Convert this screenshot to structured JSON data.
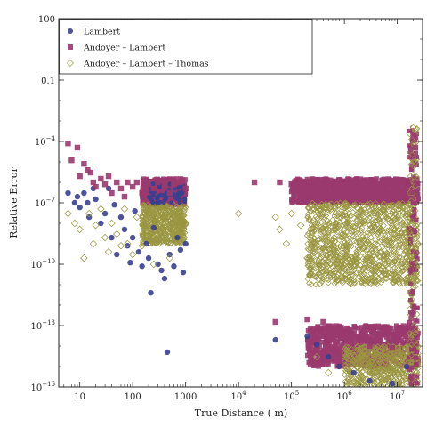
{
  "chart_data": {
    "type": "scatter",
    "xlabel": "True Distance ( m)",
    "ylabel": "Relative Error",
    "x_scale": "log",
    "y_scale": "log",
    "xlim": [
      4,
      30000000
    ],
    "ylim": [
      1e-16,
      100
    ],
    "x_ticks": [
      {
        "value": 10,
        "label": "10"
      },
      {
        "value": 100,
        "label": "100"
      },
      {
        "value": 1000,
        "label": "1000"
      },
      {
        "value": 10000,
        "label": "10",
        "exp": "4"
      },
      {
        "value": 100000,
        "label": "10",
        "exp": "5"
      },
      {
        "value": 1000000,
        "label": "10",
        "exp": "6"
      },
      {
        "value": 10000000,
        "label": "10",
        "exp": "7"
      }
    ],
    "y_ticks": [
      {
        "value": 1e-16,
        "label": "10",
        "exp": "−16"
      },
      {
        "value": 1e-13,
        "label": "10",
        "exp": "−13"
      },
      {
        "value": 1e-10,
        "label": "10",
        "exp": "−10"
      },
      {
        "value": 1e-07,
        "label": "10",
        "exp": "−7"
      },
      {
        "value": 0.0001,
        "label": "10",
        "exp": "−4"
      },
      {
        "value": 0.1,
        "label": "0.1"
      },
      {
        "value": 100,
        "label": "100"
      }
    ],
    "grid": false,
    "legend_position": "top-left",
    "series": [
      {
        "name": "Lambert",
        "color": "#3a3f8f",
        "marker": "filled-circle",
        "points": [
          [
            6,
            3e-07
          ],
          [
            8,
            1e-07
          ],
          [
            9,
            2e-07
          ],
          [
            10,
            6e-08
          ],
          [
            12,
            3e-07
          ],
          [
            14,
            1e-07
          ],
          [
            15,
            2e-08
          ],
          [
            18,
            5e-07
          ],
          [
            20,
            1.5e-07
          ],
          [
            25,
            1e-08
          ],
          [
            30,
            3e-08
          ],
          [
            35,
            5e-07
          ],
          [
            40,
            2e-09
          ],
          [
            45,
            8e-08
          ],
          [
            50,
            3e-10
          ],
          [
            60,
            2e-08
          ],
          [
            70,
            5e-09
          ],
          [
            80,
            8e-10
          ],
          [
            90,
            1.2e-10
          ],
          [
            100,
            2e-09
          ],
          [
            110,
            4e-08
          ],
          [
            130,
            4e-10
          ],
          [
            150,
            8e-11
          ],
          [
            180,
            1e-09
          ],
          [
            200,
            2e-10
          ],
          [
            220,
            4e-12
          ],
          [
            250,
            6e-09
          ],
          [
            300,
            1e-10
          ],
          [
            350,
            5e-11
          ],
          [
            400,
            2e-11
          ],
          [
            450,
            5e-15
          ],
          [
            500,
            3e-10
          ],
          [
            600,
            8e-11
          ],
          [
            700,
            2e-09
          ],
          [
            800,
            5e-10
          ],
          [
            900,
            4e-11
          ],
          [
            1000,
            1e-09
          ],
          [
            50000,
            2e-14
          ],
          [
            200000,
            3e-14
          ],
          [
            300000,
            1.2e-14
          ],
          [
            500000,
            3e-15
          ],
          [
            800000,
            1e-15
          ],
          [
            1500000,
            5e-16
          ],
          [
            3000000,
            2e-16
          ],
          [
            8000000,
            1.5e-16
          ],
          [
            15000000,
            1e-15
          ]
        ]
      },
      {
        "name": "Andoyer – Lambert",
        "color": "#9a3a6e",
        "marker": "filled-square",
        "points": [
          [
            6,
            8e-05
          ],
          [
            7,
            1.2e-05
          ],
          [
            9,
            5e-05
          ],
          [
            10,
            2e-06
          ],
          [
            12,
            8e-06
          ],
          [
            14,
            4e-06
          ],
          [
            16,
            3e-06
          ],
          [
            18,
            1e-06
          ],
          [
            20,
            6e-07
          ],
          [
            25,
            1.5e-06
          ],
          [
            30,
            8e-07
          ],
          [
            35,
            2e-06
          ],
          [
            40,
            3e-07
          ],
          [
            50,
            1e-06
          ],
          [
            60,
            5e-07
          ],
          [
            70,
            2e-07
          ],
          [
            80,
            1e-06
          ],
          [
            100,
            6e-07
          ],
          [
            120,
            1e-06
          ],
          [
            150,
            3e-07
          ],
          [
            200,
            8e-07
          ],
          [
            250,
            5e-07
          ],
          [
            300,
            1e-06
          ],
          [
            400,
            6e-07
          ],
          [
            500,
            3e-07
          ],
          [
            600,
            8e-07
          ],
          [
            800,
            1e-06
          ],
          [
            1000,
            5e-07
          ],
          [
            20000,
            1e-06
          ],
          [
            50000,
            1.5e-13
          ],
          [
            60000,
            1e-06
          ],
          [
            100000,
            8e-07
          ],
          [
            150000,
            1e-06
          ],
          [
            300000,
            3e-07
          ],
          [
            500000,
            8e-07
          ],
          [
            800000,
            1e-06
          ],
          [
            1000000,
            5e-07
          ],
          [
            2000000,
            8e-07
          ],
          [
            5000000,
            6e-07
          ],
          [
            10000000,
            8e-07
          ],
          [
            20000000,
            0.0002
          ],
          [
            22000000,
            5e-05
          ],
          [
            200000,
            2e-13
          ],
          [
            400000,
            1.5e-13
          ],
          [
            600000,
            3e-14
          ],
          [
            1000000,
            5e-14
          ],
          [
            3000000,
            1e-14
          ],
          [
            8000000,
            8e-15
          ]
        ]
      },
      {
        "name": "Andoyer – Lambert – Thomas",
        "color": "#9a9640",
        "marker": "open-diamond",
        "points": [
          [
            6,
            3e-08
          ],
          [
            8,
            1e-08
          ],
          [
            10,
            5e-09
          ],
          [
            12,
            2e-10
          ],
          [
            15,
            3e-08
          ],
          [
            18,
            1e-09
          ],
          [
            20,
            8e-09
          ],
          [
            25,
            5e-08
          ],
          [
            30,
            2e-09
          ],
          [
            35,
            4e-10
          ],
          [
            40,
            1e-08
          ],
          [
            50,
            3e-09
          ],
          [
            60,
            8e-10
          ],
          [
            70,
            5e-08
          ],
          [
            80,
            1e-09
          ],
          [
            100,
            3e-10
          ],
          [
            120,
            2e-08
          ],
          [
            150,
            8e-10
          ],
          [
            200,
            5e-09
          ],
          [
            250,
            1e-10
          ],
          [
            300,
            3e-09
          ],
          [
            400,
            8e-09
          ],
          [
            500,
            2e-10
          ],
          [
            700,
            5e-09
          ],
          [
            1000,
            1e-08
          ],
          [
            10000,
            3e-08
          ],
          [
            50000,
            2e-08
          ],
          [
            60000,
            5e-09
          ],
          [
            80000,
            1e-09
          ],
          [
            100000,
            3e-08
          ],
          [
            150000,
            8e-09
          ],
          [
            200000,
            2e-10
          ],
          [
            300000,
            3e-15
          ],
          [
            500000,
            5e-16
          ],
          [
            800000,
            2e-08
          ],
          [
            1000000,
            5e-09
          ],
          [
            2000000,
            1e-09
          ],
          [
            3000000,
            3e-10
          ],
          [
            5000000,
            5e-08
          ],
          [
            8000000,
            1e-10
          ],
          [
            10000000,
            5e-15
          ],
          [
            15000000,
            2e-16
          ],
          [
            20000000,
            0.0005
          ],
          [
            22000000,
            1e-05
          ],
          [
            1500000,
            8e-11
          ],
          [
            4000000,
            2e-10
          ]
        ]
      }
    ]
  }
}
